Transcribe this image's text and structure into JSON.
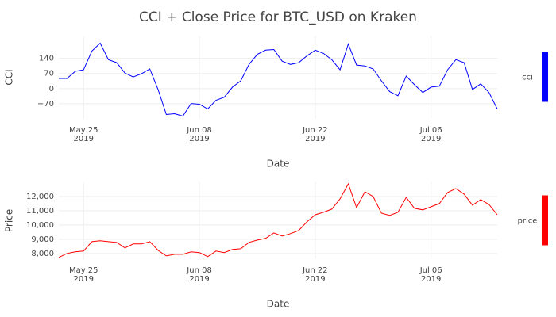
{
  "title": "CCI + Close Price for BTC_USD on Kraken",
  "chart_data": [
    {
      "type": "line",
      "xlabel": "Date",
      "ylabel": "CCI",
      "x": [
        "2019-05-22",
        "2019-05-23",
        "2019-05-24",
        "2019-05-25",
        "2019-05-26",
        "2019-05-27",
        "2019-05-28",
        "2019-05-29",
        "2019-05-30",
        "2019-05-31",
        "2019-06-01",
        "2019-06-02",
        "2019-06-03",
        "2019-06-04",
        "2019-06-05",
        "2019-06-06",
        "2019-06-07",
        "2019-06-08",
        "2019-06-09",
        "2019-06-10",
        "2019-06-11",
        "2019-06-12",
        "2019-06-13",
        "2019-06-14",
        "2019-06-15",
        "2019-06-16",
        "2019-06-17",
        "2019-06-18",
        "2019-06-19",
        "2019-06-20",
        "2019-06-21",
        "2019-06-22",
        "2019-06-23",
        "2019-06-24",
        "2019-06-25",
        "2019-06-26",
        "2019-06-27",
        "2019-06-28",
        "2019-06-29",
        "2019-06-30",
        "2019-07-01",
        "2019-07-02",
        "2019-07-03",
        "2019-07-04",
        "2019-07-05",
        "2019-07-06",
        "2019-07-07",
        "2019-07-08",
        "2019-07-09",
        "2019-07-10",
        "2019-07-11",
        "2019-07-12",
        "2019-07-13",
        "2019-07-14"
      ],
      "series": [
        {
          "name": "cci",
          "color": "#0000ff",
          "values": [
            47,
            47,
            80,
            87,
            174,
            210,
            134,
            120,
            72,
            54,
            69,
            91,
            -4,
            -120,
            -116,
            -127,
            -69,
            -72,
            -94,
            -54,
            -40,
            7,
            36,
            112,
            159,
            178,
            181,
            127,
            112,
            120,
            152,
            178,
            163,
            134,
            87,
            206,
            109,
            105,
            91,
            36,
            -14,
            -33,
            58,
            18,
            -18,
            7,
            11,
            87,
            134,
            120,
            -4,
            22,
            -18,
            -94
          ]
        }
      ],
      "xlim": [
        "2019-05-22",
        "2019-07-14"
      ],
      "xticks": [
        {
          "value": "2019-05-25",
          "label": "May 25",
          "sublabel": "2019"
        },
        {
          "value": "2019-06-08",
          "label": "Jun 08",
          "sublabel": "2019"
        },
        {
          "value": "2019-06-22",
          "label": "Jun 22",
          "sublabel": "2019"
        },
        {
          "value": "2019-07-06",
          "label": "Jul 06",
          "sublabel": "2019"
        }
      ],
      "ylim": [
        -140,
        245
      ],
      "yticks": [
        {
          "value": -70,
          "label": "−70"
        },
        0,
        70,
        140
      ],
      "grid": true
    },
    {
      "type": "line",
      "xlabel": "Date",
      "ylabel": "Price",
      "x": [
        "2019-05-22",
        "2019-05-23",
        "2019-05-24",
        "2019-05-25",
        "2019-05-26",
        "2019-05-27",
        "2019-05-28",
        "2019-05-29",
        "2019-05-30",
        "2019-05-31",
        "2019-06-01",
        "2019-06-02",
        "2019-06-03",
        "2019-06-04",
        "2019-06-05",
        "2019-06-06",
        "2019-06-07",
        "2019-06-08",
        "2019-06-09",
        "2019-06-10",
        "2019-06-11",
        "2019-06-12",
        "2019-06-13",
        "2019-06-14",
        "2019-06-15",
        "2019-06-16",
        "2019-06-17",
        "2019-06-18",
        "2019-06-19",
        "2019-06-20",
        "2019-06-21",
        "2019-06-22",
        "2019-06-23",
        "2019-06-24",
        "2019-06-25",
        "2019-06-26",
        "2019-06-27",
        "2019-06-28",
        "2019-06-29",
        "2019-06-30",
        "2019-07-01",
        "2019-07-02",
        "2019-07-03",
        "2019-07-04",
        "2019-07-05",
        "2019-07-06",
        "2019-07-07",
        "2019-07-08",
        "2019-07-09",
        "2019-07-10",
        "2019-07-11",
        "2019-07-12",
        "2019-07-13",
        "2019-07-14"
      ],
      "series": [
        {
          "name": "price",
          "color": "#ff0000",
          "values": [
            7720,
            8000,
            8110,
            8170,
            8830,
            8890,
            8830,
            8780,
            8390,
            8670,
            8670,
            8830,
            8220,
            7830,
            7940,
            7940,
            8110,
            8060,
            7780,
            8170,
            8060,
            8280,
            8330,
            8780,
            8940,
            9060,
            9440,
            9220,
            9390,
            9610,
            10220,
            10720,
            10890,
            11110,
            11830,
            12890,
            11220,
            12330,
            12000,
            10830,
            10670,
            10890,
            11940,
            11170,
            11060,
            11280,
            11500,
            12280,
            12560,
            12170,
            11390,
            11780,
            11440,
            10720
          ]
        }
      ],
      "xlim": [
        "2019-05-22",
        "2019-07-14"
      ],
      "xticks": [
        {
          "value": "2019-05-25",
          "label": "May 25",
          "sublabel": "2019"
        },
        {
          "value": "2019-06-08",
          "label": "Jun 08",
          "sublabel": "2019"
        },
        {
          "value": "2019-06-22",
          "label": "Jun 22",
          "sublabel": "2019"
        },
        {
          "value": "2019-07-06",
          "label": "Jul 06",
          "sublabel": "2019"
        }
      ],
      "ylim": [
        7600,
        13000
      ],
      "yticks": [
        {
          "value": 8000,
          "label": "8,000"
        },
        {
          "value": 9000,
          "label": "9,000"
        },
        {
          "value": 10000,
          "label": "10,000"
        },
        {
          "value": 11000,
          "label": "11,000"
        },
        {
          "value": 12000,
          "label": "12,000"
        }
      ],
      "grid": true
    }
  ]
}
